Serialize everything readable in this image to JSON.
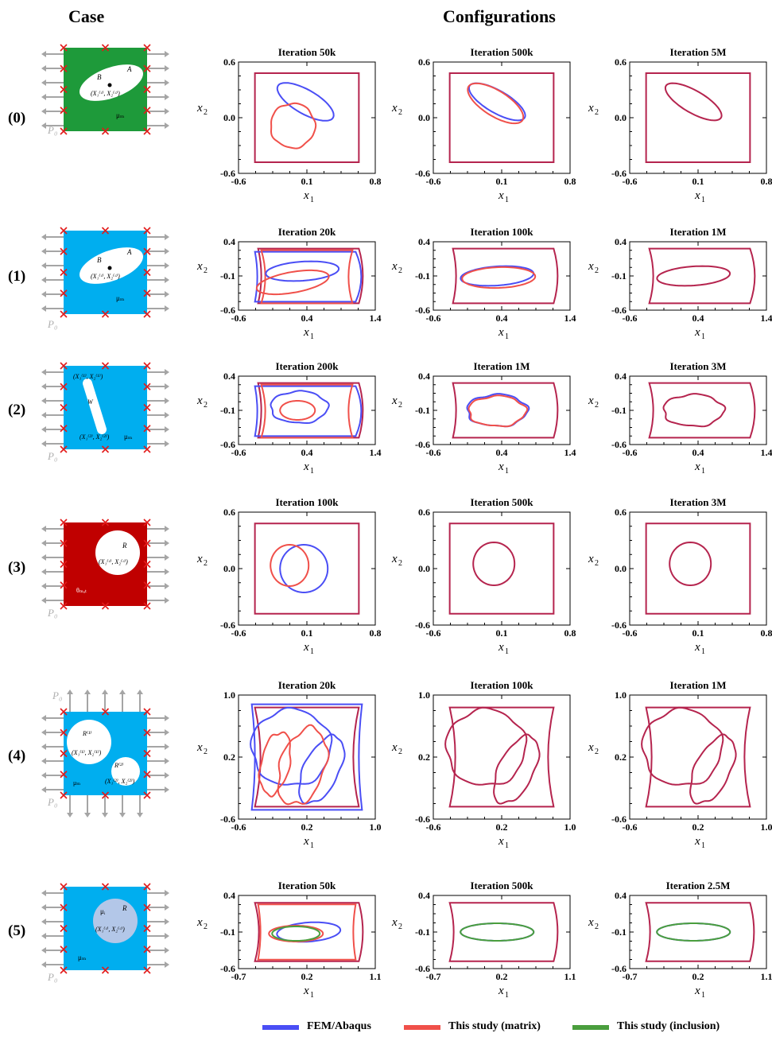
{
  "headers": {
    "case": "Case",
    "configurations": "Configurations"
  },
  "colors": {
    "fem": "#4a4ef5",
    "matrix": "#f0504a",
    "inclusion": "#4a9e3d",
    "both": "#b5244e",
    "load_arrow": "#a5a5a5",
    "x_mark": "#e21b1b"
  },
  "legend": [
    {
      "label": "FEM/Abaqus",
      "color": "#4a4ef5"
    },
    {
      "label": "This study (matrix)",
      "color": "#f0504a"
    },
    {
      "label": "This study (inclusion)",
      "color": "#4a9e3d"
    }
  ],
  "cases": [
    {
      "id": "(0)",
      "fill": "#1e9a3a",
      "annotations": [
        "B",
        "A",
        "(X₁⁽ᶜ⁾, X₂⁽ᶜ⁾)",
        "μₘ",
        "P₀"
      ],
      "xticks": [
        "-0.6",
        "0.1",
        "0.8"
      ],
      "yticks": [
        "0.6",
        "0.0",
        "-0.6"
      ],
      "iterations": [
        "Iteration 50k",
        "Iteration 500k",
        "Iteration 5M"
      ]
    },
    {
      "id": "(1)",
      "fill": "#00aeef",
      "annotations": [
        "B",
        "A",
        "(X₁⁽ᶜ⁾, X₂⁽ᶜ⁾)",
        "μₘ",
        "P₀"
      ],
      "xticks": [
        "-0.6",
        "0.4",
        "1.4"
      ],
      "yticks": [
        "0.4",
        "-0.1",
        "-0.6"
      ],
      "iterations": [
        "Iteration 20k",
        "Iteration 100k",
        "Iteration 1M"
      ]
    },
    {
      "id": "(2)",
      "fill": "#00aeef",
      "annotations": [
        "(X₁⁽¹⁾, X₂⁽¹⁾)",
        "W",
        "(X₁⁽²⁾, X₂⁽²⁾)",
        "μₘ",
        "P₀"
      ],
      "xticks": [
        "-0.6",
        "0.4",
        "1.4"
      ],
      "yticks": [
        "0.4",
        "-0.1",
        "-0.6"
      ],
      "iterations": [
        "Iteration 200k",
        "Iteration 1M",
        "Iteration 3M"
      ]
    },
    {
      "id": "(3)",
      "fill": "#c00000",
      "annotations": [
        "R",
        "(X₁⁽ᶜ⁾, X₂⁽ᶜ⁾)",
        "θₘₐₜ",
        "P₀"
      ],
      "xticks": [
        "-0.6",
        "0.1",
        "0.8"
      ],
      "yticks": [
        "0.6",
        "0.0",
        "-0.6"
      ],
      "iterations": [
        "Iteration 100k",
        "Iteration 500k",
        "Iteration 3M"
      ]
    },
    {
      "id": "(4)",
      "fill": "#00aeef",
      "annotations": [
        "R⁽¹⁾",
        "(X₁⁽¹⁾, X₂⁽¹⁾)",
        "R⁽²⁾",
        "(X₁⁽²⁾, X₂⁽²⁾)",
        "μₘ",
        "P₀",
        "P₀"
      ],
      "xticks": [
        "-0.6",
        "0.2",
        "1.0"
      ],
      "yticks": [
        "1.0",
        "0.2",
        "-0.6"
      ],
      "iterations": [
        "Iteration 20k",
        "Iteration 100k",
        "Iteration 1M"
      ]
    },
    {
      "id": "(5)",
      "fill": "#00aeef",
      "annotations": [
        "μᵢ",
        "R",
        "(X₁⁽ᶜ⁾, X₂⁽ᶜ⁾)",
        "μₘ",
        "P₀"
      ],
      "xticks": [
        "-0.7",
        "0.2",
        "1.1"
      ],
      "yticks": [
        "0.4",
        "-0.1",
        "-0.6"
      ],
      "iterations": [
        "Iteration 50k",
        "Iteration 500k",
        "Iteration 2.5M"
      ]
    }
  ],
  "axes": {
    "xlabel": "x",
    "xsub": "1",
    "ylabel": "x",
    "ysub": "2"
  }
}
